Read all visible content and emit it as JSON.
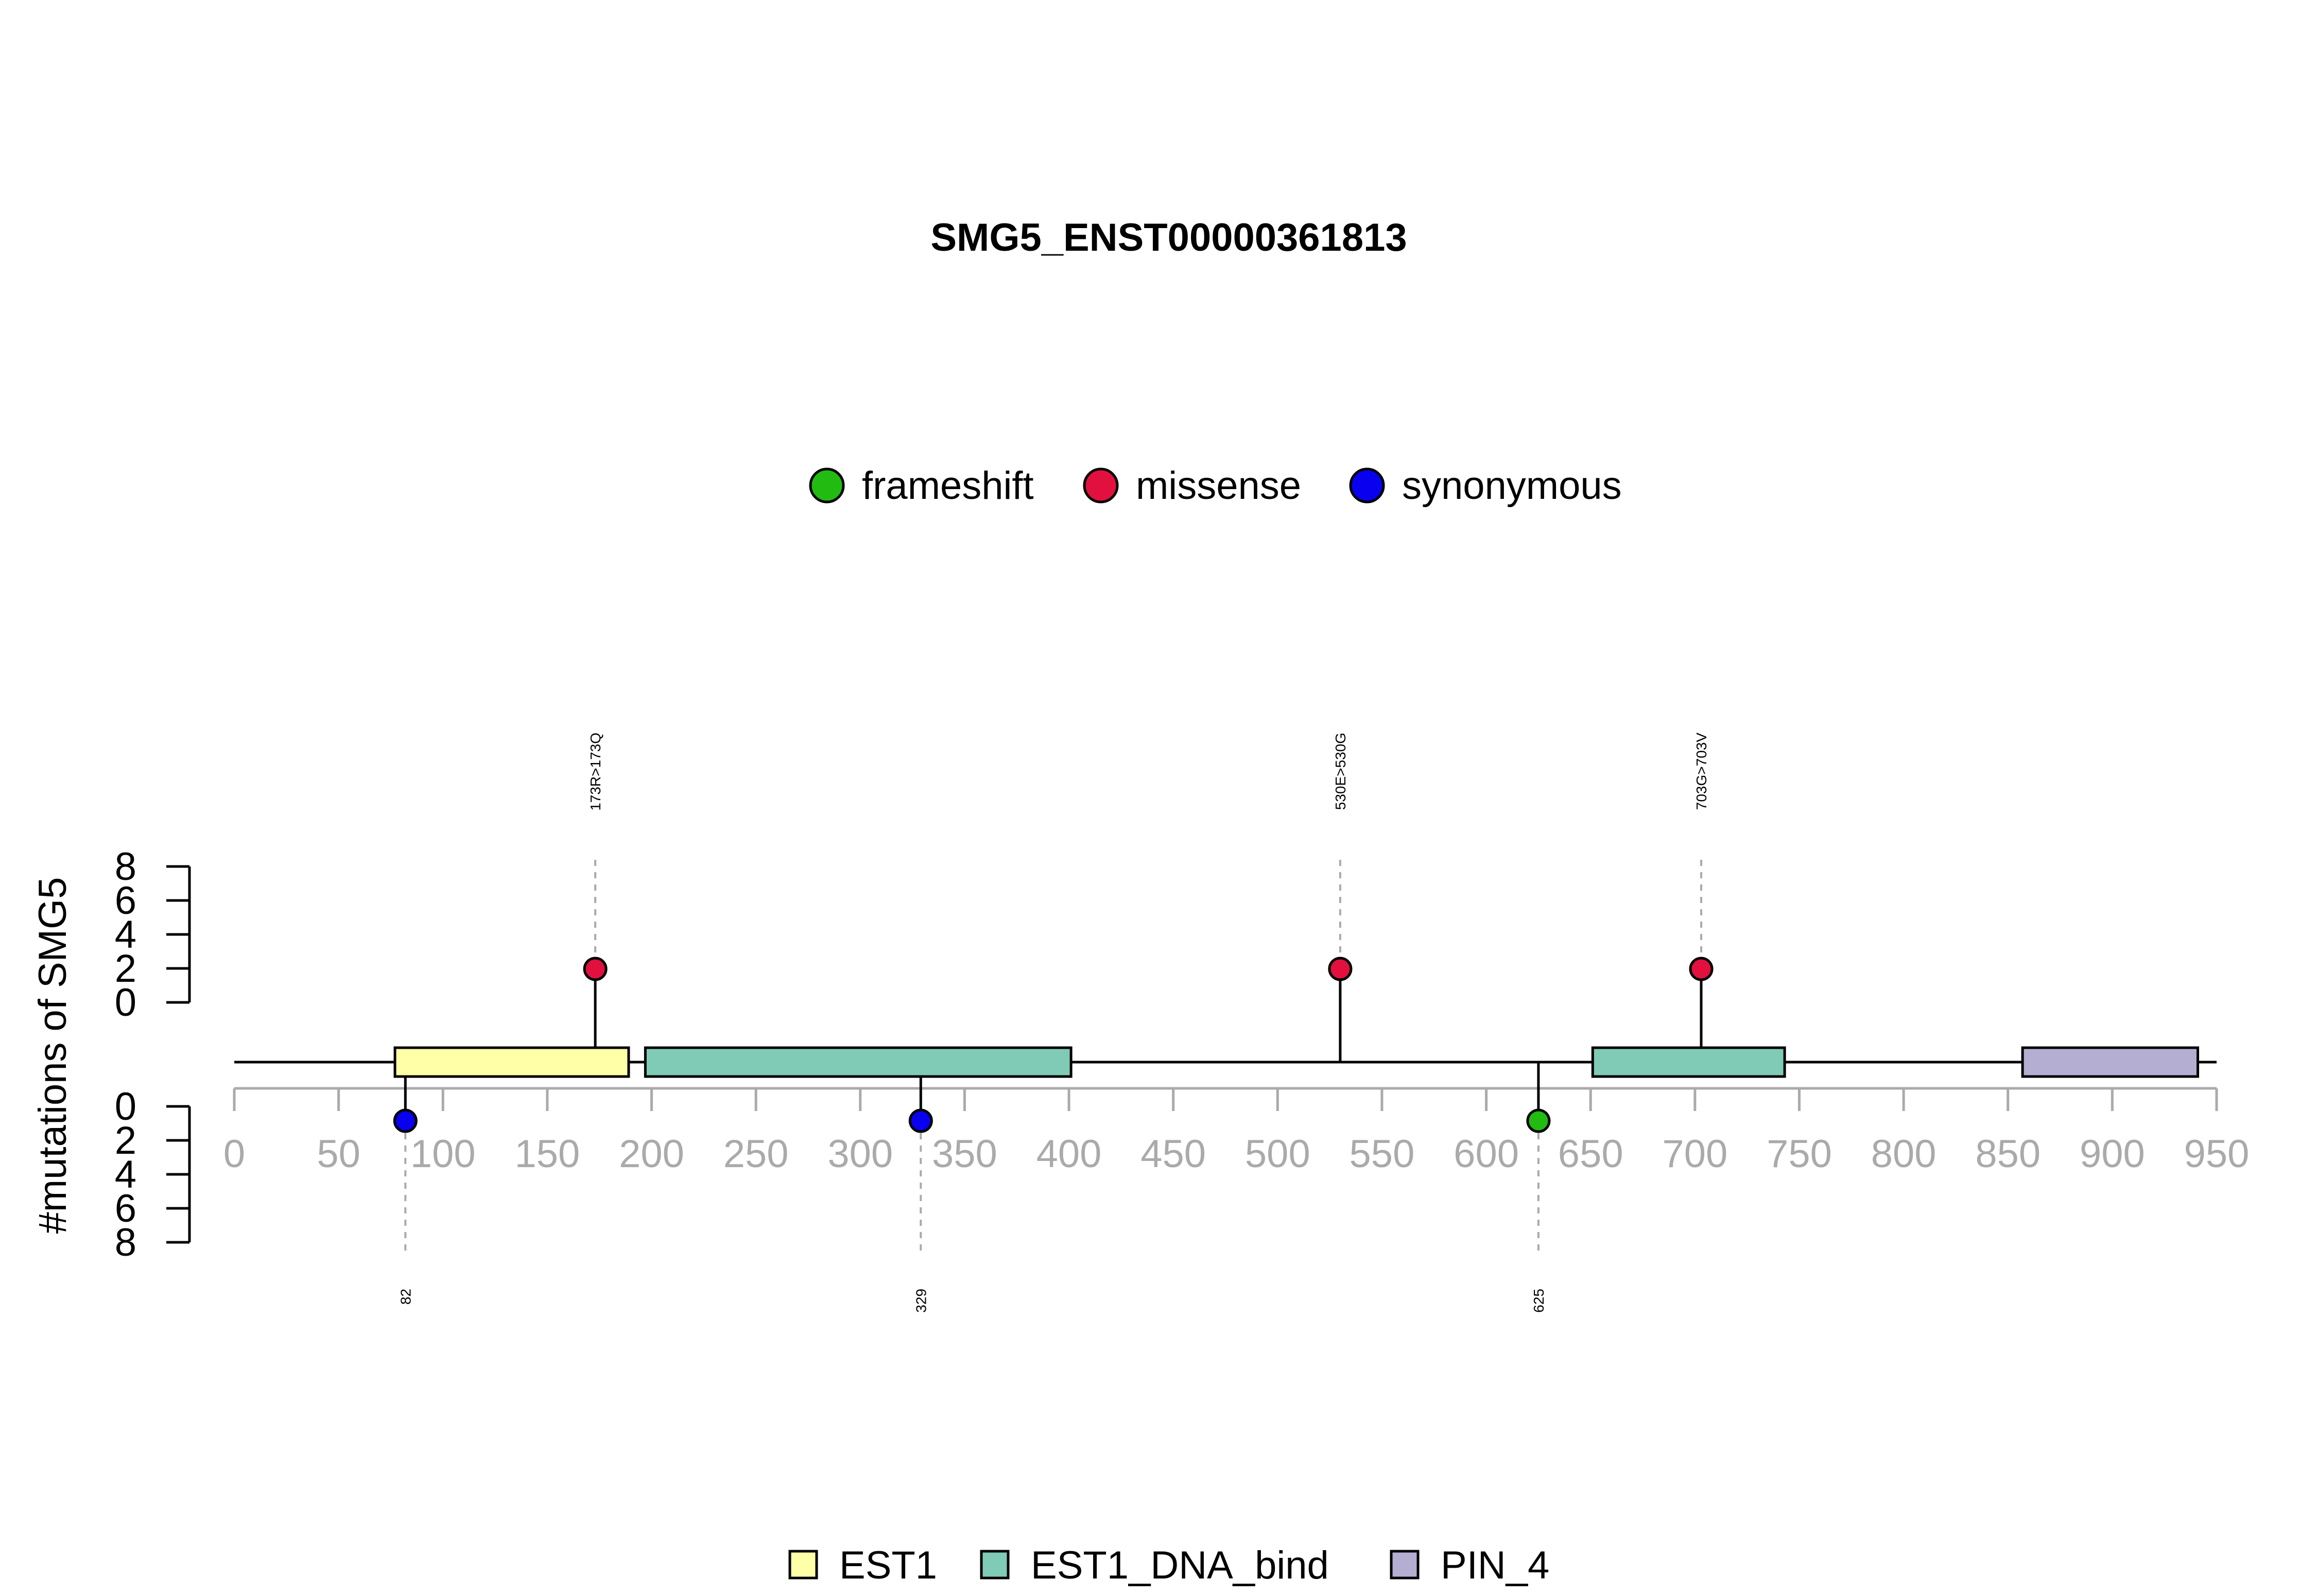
{
  "chart_data": {
    "type": "lollipop",
    "title": "SMG5_ENST00000361813",
    "ylabel": "#mutations of SMG5",
    "protein_length": 950,
    "x_ticks": [
      0,
      50,
      100,
      150,
      200,
      250,
      300,
      350,
      400,
      450,
      500,
      550,
      600,
      650,
      700,
      750,
      800,
      850,
      900,
      950
    ],
    "y_ticks_upper": [
      0,
      2,
      4,
      6,
      8
    ],
    "y_ticks_lower": [
      0,
      2,
      4,
      6,
      8
    ],
    "mutation_legend": [
      {
        "label": "frameshift",
        "color": "#22bb11"
      },
      {
        "label": "missense",
        "color": "#e2103f"
      },
      {
        "label": "synonymous",
        "color": "#0a00f0"
      }
    ],
    "domain_legend": [
      {
        "label": "EST1",
        "color": "#ffffa8"
      },
      {
        "label": "EST1_DNA_bind",
        "color": "#7fcbb6"
      },
      {
        "label": "PIN_4",
        "color": "#b4aed3"
      }
    ],
    "domains": [
      {
        "name": "EST1",
        "start": 77,
        "end": 189
      },
      {
        "name": "EST1_DNA_bind",
        "start": 197,
        "end": 401
      },
      {
        "name": "EST1_DNA_bind",
        "start": 651,
        "end": 743
      },
      {
        "name": "PIN_4",
        "start": 857,
        "end": 941
      }
    ],
    "mutations_above": [
      {
        "position": 173,
        "label": "173R>173Q",
        "type": "missense",
        "count": 1
      },
      {
        "position": 530,
        "label": "530E>530G",
        "type": "missense",
        "count": 1
      },
      {
        "position": 703,
        "label": "703G>703V",
        "type": "missense",
        "count": 1
      }
    ],
    "mutations_below": [
      {
        "position": 82,
        "label": "82",
        "type": "synonymous",
        "count": 1
      },
      {
        "position": 329,
        "label": "329",
        "type": "synonymous",
        "count": 1
      },
      {
        "position": 625,
        "label": "625",
        "type": "frameshift",
        "count": 1
      }
    ]
  }
}
